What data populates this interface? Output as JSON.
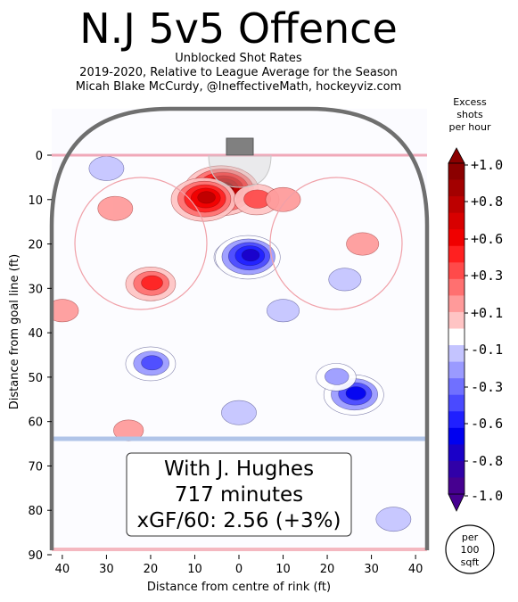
{
  "header": {
    "title": "N.J 5v5 Offence",
    "subtitle1": "Unblocked Shot Rates",
    "subtitle2": "2019-2020, Relative to League Average for the Season",
    "subtitle3": "Micah Blake McCurdy, @IneffectiveMath, hockeyviz.com"
  },
  "annotation": {
    "line1": "With J. Hughes",
    "line2": "717 minutes",
    "line3": "xGF/60: 2.56 (+3%)"
  },
  "colorbar": {
    "title_lines": [
      "Excess",
      "shots",
      "per hour"
    ],
    "ticks": [
      "+1.0",
      "+0.8",
      "+0.6",
      "+0.3",
      "+0.1",
      "-0.1",
      "-0.3",
      "-0.6",
      "-0.8",
      "-1.0"
    ],
    "tick_values": [
      1.0,
      0.8,
      0.6,
      0.3,
      0.1,
      -0.1,
      -0.3,
      -0.6,
      -0.8,
      -1.0
    ],
    "colors_top_to_bottom": [
      "#8b0000",
      "#a30000",
      "#bd0000",
      "#d80000",
      "#f00000",
      "#ff2020",
      "#ff4a4a",
      "#ff7070",
      "#ff9a9a",
      "#ffc4c4",
      "#ffffff",
      "#c4c4ff",
      "#9a9aff",
      "#7070ff",
      "#4a4aff",
      "#2020ff",
      "#0000f0",
      "#1a00c8",
      "#3000a8",
      "#460090"
    ],
    "unit_badge": [
      "per",
      "100",
      "sqft"
    ]
  },
  "chart_data": {
    "type": "heatmap",
    "title": "N.J 5v5 Offence",
    "xlabel": "Distance from centre of rink (ft)",
    "ylabel": "Distance from goal line (ft)",
    "x_ticks": [
      40,
      30,
      20,
      10,
      0,
      10,
      20,
      30,
      40
    ],
    "y_ticks": [
      0,
      10,
      20,
      30,
      40,
      50,
      60,
      70,
      80,
      90
    ],
    "xlim": [
      -42.5,
      42.5
    ],
    "ylim": [
      90,
      -11
    ],
    "series": [
      {
        "x": -4,
        "y": 8,
        "value": 1.0
      },
      {
        "x": -8,
        "y": 10,
        "value": 0.8
      },
      {
        "x": 4,
        "y": 10,
        "value": 0.4
      },
      {
        "x": 10,
        "y": 10,
        "value": 0.2
      },
      {
        "x": -20,
        "y": 29,
        "value": 0.5
      },
      {
        "x": -28,
        "y": 12,
        "value": 0.2
      },
      {
        "x": 28,
        "y": 20,
        "value": 0.15
      },
      {
        "x": -40,
        "y": 35,
        "value": 0.15
      },
      {
        "x": -25,
        "y": 62,
        "value": 0.1
      },
      {
        "x": 0,
        "y": 23,
        "value": -0.5
      },
      {
        "x": 2,
        "y": 23,
        "value": -0.8
      },
      {
        "x": -20,
        "y": 47,
        "value": -0.5
      },
      {
        "x": 26,
        "y": 54,
        "value": -0.7
      },
      {
        "x": 22,
        "y": 50,
        "value": -0.3
      },
      {
        "x": -30,
        "y": 3,
        "value": -0.2
      },
      {
        "x": 10,
        "y": 35,
        "value": -0.15
      },
      {
        "x": 0,
        "y": 58,
        "value": -0.2
      },
      {
        "x": 35,
        "y": 82,
        "value": -0.2
      },
      {
        "x": 24,
        "y": 28,
        "value": -0.15
      }
    ]
  }
}
